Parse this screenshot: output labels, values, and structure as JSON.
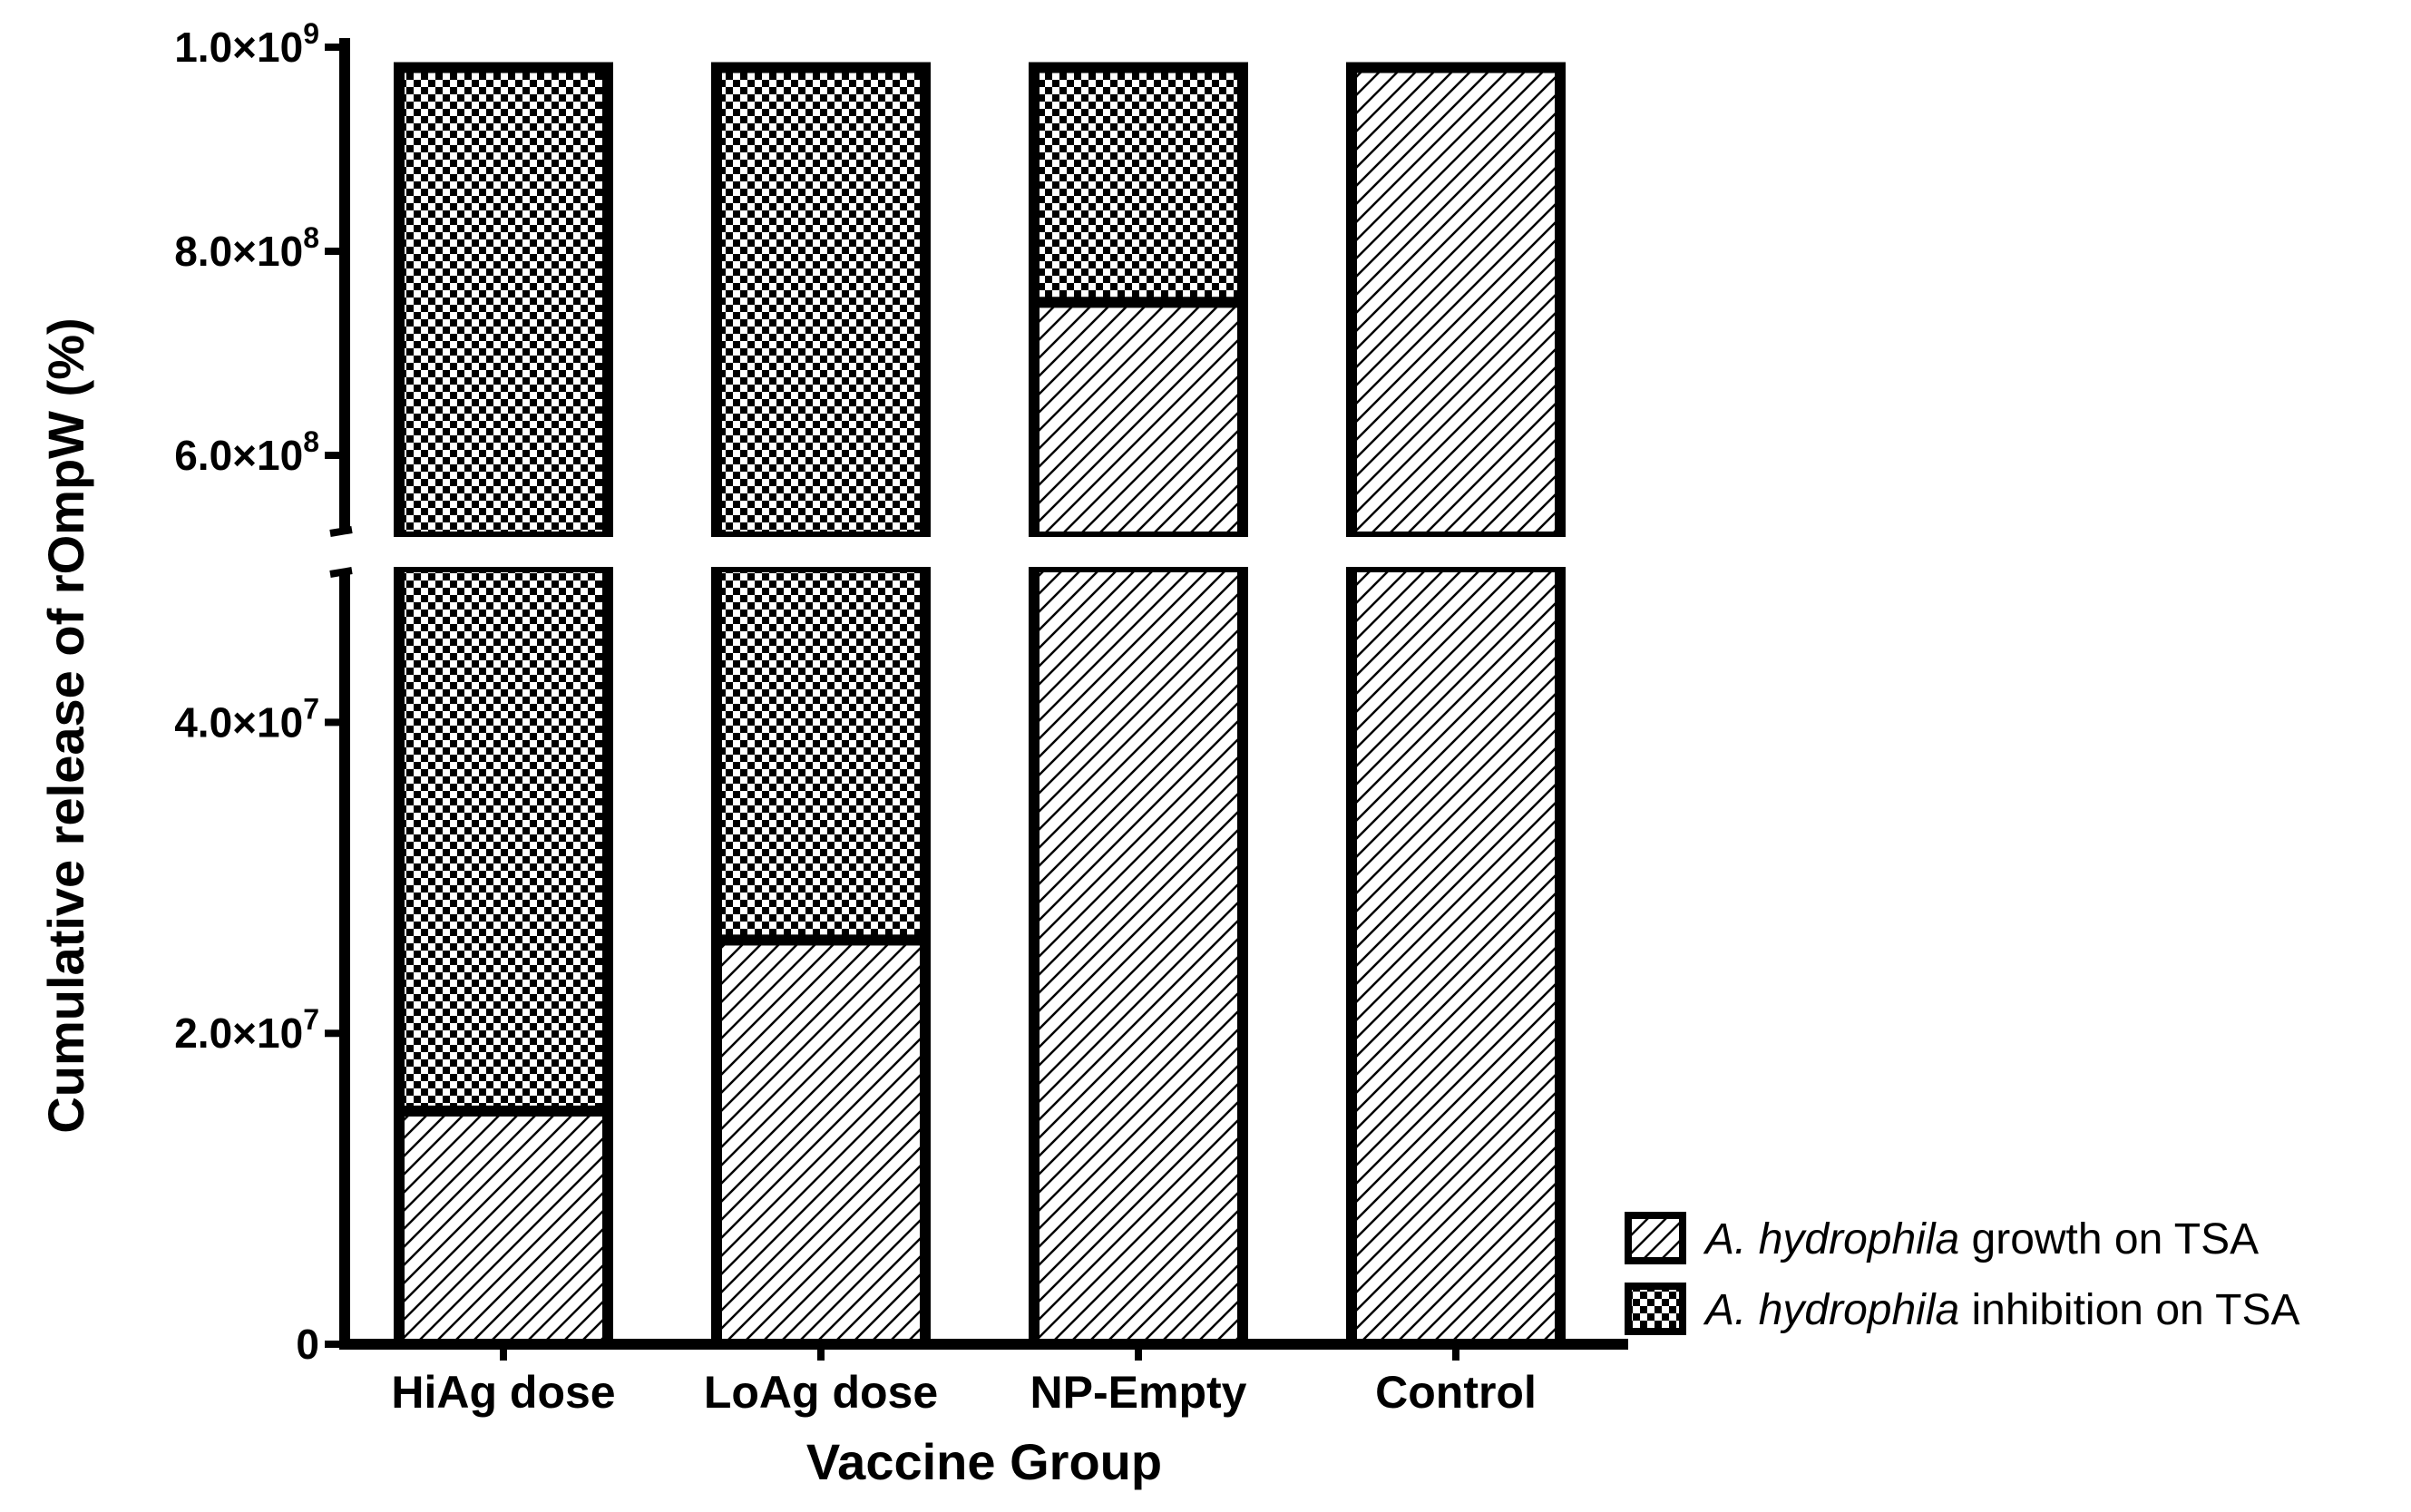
{
  "chart_data": {
    "type": "bar",
    "stacked": true,
    "categories": [
      "HiAg dose",
      "LoAg dose",
      "NP-Empty",
      "Control"
    ],
    "series": [
      {
        "name": "growth on TSA",
        "name_prefix": "A. hydrophila",
        "pattern": "diagonal-hatch",
        "values": [
          15000000,
          26000000,
          750000000,
          980000000
        ]
      },
      {
        "name": "inhibition on TSA",
        "name_prefix": "A. hydrophila",
        "pattern": "checkerboard",
        "values": [
          965000000,
          954000000,
          230000000,
          0
        ]
      }
    ],
    "xlabel": "Vaccine Group",
    "ylabel": "Cumulative release of rOmpW (%)",
    "y_axis_break": true,
    "lower_segment": {
      "ylim": [
        0,
        50000000
      ],
      "ticks": [
        0,
        20000000,
        40000000
      ],
      "tick_labels": [
        "0",
        "2.0×10",
        "4.0×10"
      ],
      "tick_exponents": [
        "",
        "7",
        "7"
      ]
    },
    "upper_segment": {
      "ylim": [
        520000000,
        1000000000
      ],
      "ticks": [
        600000000,
        800000000,
        1000000000
      ],
      "tick_labels": [
        "6.0×10",
        "8.0×10",
        "1.0×10"
      ],
      "tick_exponents": [
        "8",
        "8",
        "9"
      ]
    },
    "legend_position": "bottom-right",
    "grid": false
  }
}
